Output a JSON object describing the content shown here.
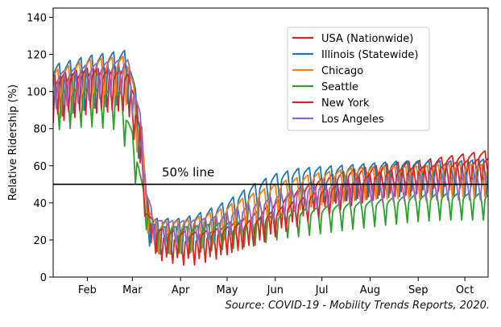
{
  "chart_data": {
    "type": "line",
    "ylabel": "Relative Ridership (%)",
    "xlabel": "",
    "ylim": [
      0,
      145
    ],
    "yticks": [
      0,
      20,
      40,
      60,
      80,
      100,
      120,
      140
    ],
    "x_month_labels": [
      "Feb",
      "Mar",
      "Apr",
      "May",
      "Jun",
      "Jul",
      "Aug",
      "Sep",
      "Oct"
    ],
    "x_month_start_day": [
      0,
      29,
      60,
      90,
      121,
      151,
      182,
      213,
      243
    ],
    "x_range_days": [
      -8,
      272
    ],
    "annotation": "50% line",
    "reference_line_value": 50,
    "legend_position": "top-right",
    "series": [
      {
        "name": "USA (Nationwide)",
        "color": "#e32119",
        "points": [
          [
            -8,
            95
          ],
          [
            15,
            100
          ],
          [
            40,
            102
          ],
          [
            49,
            70
          ],
          [
            52,
            35
          ],
          [
            58,
            18
          ],
          [
            65,
            16
          ],
          [
            80,
            14
          ],
          [
            95,
            17
          ],
          [
            110,
            22
          ],
          [
            125,
            28
          ],
          [
            140,
            35
          ],
          [
            155,
            42
          ],
          [
            170,
            47
          ],
          [
            185,
            50
          ],
          [
            200,
            52
          ],
          [
            215,
            54
          ],
          [
            230,
            55
          ],
          [
            245,
            57
          ],
          [
            270,
            60
          ]
        ],
        "amp": 10,
        "weekly": true
      },
      {
        "name": "Illinois (Statewide)",
        "color": "#1f77b4",
        "points": [
          [
            -8,
            100
          ],
          [
            15,
            105
          ],
          [
            40,
            108
          ],
          [
            49,
            70
          ],
          [
            52,
            35
          ],
          [
            55,
            22
          ],
          [
            60,
            22
          ],
          [
            75,
            22
          ],
          [
            90,
            26
          ],
          [
            105,
            32
          ],
          [
            120,
            40
          ],
          [
            135,
            46
          ],
          [
            150,
            49
          ],
          [
            165,
            50
          ],
          [
            185,
            51
          ],
          [
            200,
            52
          ],
          [
            215,
            53
          ],
          [
            235,
            53
          ],
          [
            255,
            53
          ],
          [
            270,
            54
          ]
        ],
        "amp": 12,
        "weekly": true
      },
      {
        "name": "Chicago",
        "color": "#ff7f0e",
        "points": [
          [
            -8,
            98
          ],
          [
            15,
            104
          ],
          [
            40,
            106
          ],
          [
            49,
            68
          ],
          [
            52,
            35
          ],
          [
            57,
            22
          ],
          [
            62,
            21
          ],
          [
            80,
            22
          ],
          [
            100,
            28
          ],
          [
            120,
            36
          ],
          [
            140,
            43
          ],
          [
            160,
            47
          ],
          [
            185,
            50
          ],
          [
            205,
            51
          ],
          [
            225,
            51
          ],
          [
            245,
            52
          ],
          [
            270,
            52
          ]
        ],
        "amp": 11,
        "weekly": true
      },
      {
        "name": "Seattle",
        "color": "#2ca02c",
        "points": [
          [
            -8,
            90
          ],
          [
            15,
            92
          ],
          [
            35,
            90
          ],
          [
            42,
            70
          ],
          [
            46,
            58
          ],
          [
            50,
            40
          ],
          [
            55,
            22
          ],
          [
            62,
            20
          ],
          [
            80,
            20
          ],
          [
            100,
            22
          ],
          [
            120,
            24
          ],
          [
            140,
            28
          ],
          [
            160,
            30
          ],
          [
            185,
            33
          ],
          [
            205,
            35
          ],
          [
            225,
            37
          ],
          [
            245,
            38
          ],
          [
            270,
            38
          ]
        ],
        "amp": 9,
        "weekly": true
      },
      {
        "name": "New York",
        "color": "#d62728",
        "points": [
          [
            -8,
            98
          ],
          [
            15,
            102
          ],
          [
            40,
            100
          ],
          [
            48,
            70
          ],
          [
            52,
            30
          ],
          [
            58,
            20
          ],
          [
            65,
            18
          ],
          [
            85,
            17
          ],
          [
            105,
            20
          ],
          [
            125,
            25
          ],
          [
            145,
            33
          ],
          [
            165,
            40
          ],
          [
            185,
            46
          ],
          [
            205,
            50
          ],
          [
            225,
            52
          ],
          [
            245,
            54
          ],
          [
            270,
            57
          ]
        ],
        "amp": 9,
        "weekly": true
      },
      {
        "name": "Los Angeles",
        "color": "#9467bd",
        "points": [
          [
            -8,
            100
          ],
          [
            15,
            105
          ],
          [
            40,
            108
          ],
          [
            49,
            75
          ],
          [
            52,
            40
          ],
          [
            57,
            26
          ],
          [
            62,
            24
          ],
          [
            80,
            24
          ],
          [
            100,
            27
          ],
          [
            120,
            33
          ],
          [
            140,
            39
          ],
          [
            160,
            43
          ],
          [
            185,
            46
          ],
          [
            205,
            47
          ],
          [
            225,
            48
          ],
          [
            245,
            48
          ],
          [
            270,
            48
          ]
        ],
        "amp": 8,
        "weekly": true
      }
    ]
  },
  "source": {
    "prefix": "Source: ",
    "title": "COVID-19 - Mobility Trends Reports",
    "suffix": ", 2020."
  }
}
